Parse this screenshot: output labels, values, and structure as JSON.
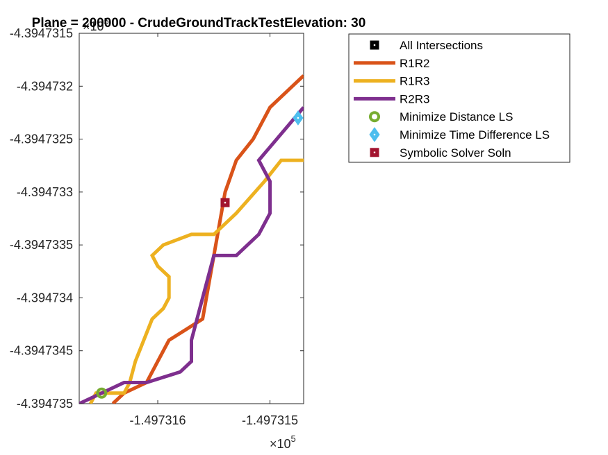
{
  "chart_data": {
    "type": "line",
    "title": "Plane = 200000 - CrudeGroundTrackTestElevation: 30",
    "xlabel": "",
    "ylabel": "",
    "x_exponent_label": "×10",
    "x_exponent_power": "5",
    "y_exponent_label": "×10",
    "y_exponent_power": "5",
    "xlim": [
      -1.4973167,
      -1.4973147
    ],
    "ylim": [
      -4.394735,
      -4.3947315
    ],
    "x_ticks": [
      {
        "value": -1.497316,
        "label": "-1.497316"
      },
      {
        "value": -1.497315,
        "label": "-1.497315"
      }
    ],
    "y_ticks": [
      {
        "value": -4.3947315,
        "label": "-4.3947315"
      },
      {
        "value": -4.394732,
        "label": "-4.394732"
      },
      {
        "value": -4.3947325,
        "label": "-4.3947325"
      },
      {
        "value": -4.394733,
        "label": "-4.394733"
      },
      {
        "value": -4.3947335,
        "label": "-4.3947335"
      },
      {
        "value": -4.394734,
        "label": "-4.394734"
      },
      {
        "value": -4.3947345,
        "label": "-4.3947345"
      },
      {
        "value": -4.394735,
        "label": "-4.394735"
      }
    ],
    "grid": false,
    "legend_position": "top-right (outside axes)",
    "series": [
      {
        "name": "R1R2",
        "kind": "line",
        "color": "#D95319",
        "x": [
          -1.4973164,
          -1.4973163,
          -1.4973161,
          -1.49731605,
          -1.497316,
          -1.49731595,
          -1.4973159,
          -1.49731575,
          -1.4973156,
          -1.49731555,
          -1.4973155,
          -1.49731545,
          -1.4973154,
          -1.4973153,
          -1.49731515,
          -1.4973151,
          -1.497315,
          -1.4973148,
          -1.4973147
        ],
        "y": [
          -4.394735,
          -4.3947349,
          -4.3947348,
          -4.3947347,
          -4.3947346,
          -4.3947345,
          -4.3947344,
          -4.3947343,
          -4.3947342,
          -4.3947339,
          -4.3947336,
          -4.3947333,
          -4.394733,
          -4.3947327,
          -4.3947325,
          -4.3947324,
          -4.3947322,
          -4.394732,
          -4.3947319
        ]
      },
      {
        "name": "R1R3",
        "kind": "line",
        "color": "#EDB120",
        "x": [
          -1.4973166,
          -1.49731655,
          -1.4973163,
          -1.49731625,
          -1.4973162,
          -1.49731605,
          -1.49731595,
          -1.4973159,
          -1.4973159,
          -1.497316,
          -1.49731605,
          -1.49731595,
          -1.4973157,
          -1.4973155,
          -1.4973153,
          -1.49731505,
          -1.4973149,
          -1.4973147
        ],
        "y": [
          -4.394735,
          -4.3947349,
          -4.3947349,
          -4.3947348,
          -4.3947346,
          -4.3947342,
          -4.3947341,
          -4.394734,
          -4.3947338,
          -4.3947337,
          -4.3947336,
          -4.3947335,
          -4.3947334,
          -4.3947334,
          -4.3947332,
          -4.3947329,
          -4.3947327,
          -4.3947327
        ]
      },
      {
        "name": "R2R3",
        "kind": "line",
        "color": "#7E2F8E",
        "x": [
          -1.4973167,
          -1.4973165,
          -1.4973163,
          -1.4973161,
          -1.4973158,
          -1.4973157,
          -1.4973157,
          -1.4973156,
          -1.4973155,
          -1.4973153,
          -1.4973151,
          -1.497315,
          -1.497315,
          -1.4973151,
          -1.4973147
        ],
        "y": [
          -4.394735,
          -4.3947349,
          -4.3947348,
          -4.3947348,
          -4.3947347,
          -4.3947346,
          -4.3947344,
          -4.394734,
          -4.3947336,
          -4.3947336,
          -4.3947334,
          -4.3947332,
          -4.3947329,
          -4.3947327,
          -4.3947322
        ]
      },
      {
        "name": "All Intersections",
        "kind": "marker",
        "marker": "square",
        "color": "#000000",
        "x": [],
        "y": []
      },
      {
        "name": "Minimize Distance LS",
        "kind": "marker",
        "marker": "circle",
        "color": "#77AC30",
        "x": [
          -1.4973165
        ],
        "y": [
          -4.3947349
        ]
      },
      {
        "name": "Minimize Time Difference LS",
        "kind": "marker",
        "marker": "diamond",
        "color": "#4DBEEE",
        "x": [
          -1.49731475
        ],
        "y": [
          -4.3947323
        ]
      },
      {
        "name": "Symbolic Solver Soln",
        "kind": "marker",
        "marker": "square",
        "color": "#A2142F",
        "x": [
          -1.4973154
        ],
        "y": [
          -4.3947331
        ]
      }
    ],
    "legend_order": [
      "All Intersections",
      "R1R2",
      "R1R3",
      "R2R3",
      "Minimize Distance LS",
      "Minimize Time Difference LS",
      "Symbolic Solver Soln"
    ]
  }
}
